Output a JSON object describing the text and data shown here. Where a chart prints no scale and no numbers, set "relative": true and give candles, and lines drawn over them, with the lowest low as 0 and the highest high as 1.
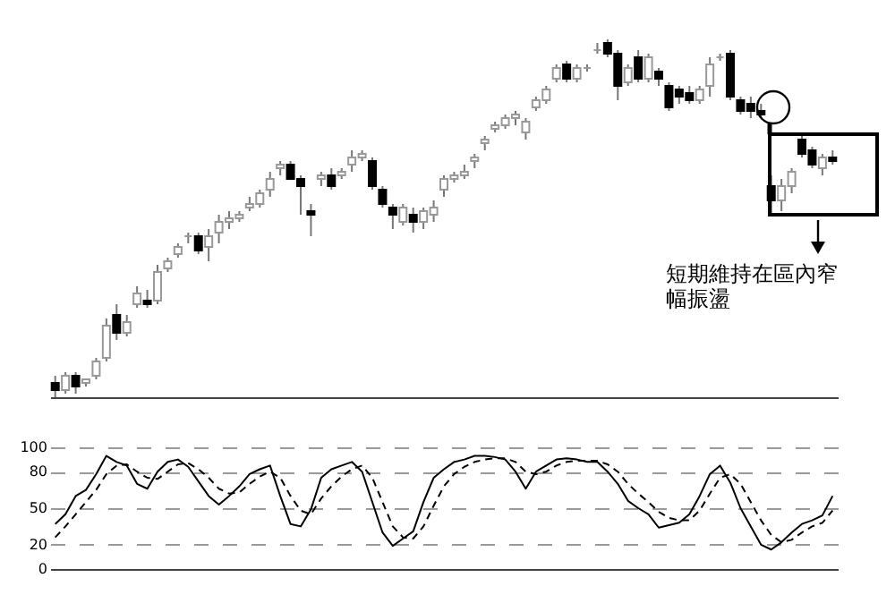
{
  "chart_data": [
    {
      "type": "candlestick",
      "relative": true,
      "tick_labels": false,
      "categories": [
        null,
        null,
        null,
        null,
        null,
        null,
        null,
        null,
        null,
        null,
        null,
        null,
        null,
        null,
        null,
        null,
        null,
        null,
        null,
        null,
        null,
        null,
        null,
        null,
        null,
        null,
        null,
        null,
        null,
        null,
        null,
        null,
        null,
        null,
        null,
        null,
        null,
        null,
        null,
        null,
        null,
        null,
        null,
        null,
        null,
        null,
        null,
        null,
        null,
        null,
        null,
        null,
        null,
        null,
        null,
        null,
        null,
        null,
        null,
        null,
        null,
        null,
        null,
        null,
        null,
        null,
        null,
        null,
        null,
        null,
        null,
        null,
        null,
        null,
        null,
        null,
        null
      ],
      "ohlc": [
        [
          0.04,
          0.06,
          0,
          0.02
        ],
        [
          0.02,
          0.07,
          0.01,
          0.06
        ],
        [
          0.06,
          0.07,
          0.01,
          0.03
        ],
        [
          0.04,
          0.05,
          0.03,
          0.05
        ],
        [
          0.06,
          0.11,
          0.05,
          0.1
        ],
        [
          0.11,
          0.22,
          0.1,
          0.2
        ],
        [
          0.23,
          0.26,
          0.16,
          0.18
        ],
        [
          0.18,
          0.23,
          0.17,
          0.21
        ],
        [
          0.26,
          0.31,
          0.25,
          0.29
        ],
        [
          0.27,
          0.3,
          0.25,
          0.26
        ],
        [
          0.27,
          0.37,
          0.26,
          0.35
        ],
        [
          0.36,
          0.39,
          0.35,
          0.38
        ],
        [
          0.4,
          0.43,
          0.39,
          0.42
        ],
        [
          0.45,
          0.46,
          0.43,
          0.45
        ],
        [
          0.45,
          0.46,
          0.4,
          0.41
        ],
        [
          0.42,
          0.47,
          0.38,
          0.45
        ],
        [
          0.46,
          0.51,
          0.43,
          0.49
        ],
        [
          0.49,
          0.52,
          0.47,
          0.5
        ],
        [
          0.5,
          0.52,
          0.49,
          0.51
        ],
        [
          0.53,
          0.56,
          0.52,
          0.54
        ],
        [
          0.54,
          0.58,
          0.53,
          0.57
        ],
        [
          0.58,
          0.63,
          0.56,
          0.61
        ],
        [
          0.64,
          0.66,
          0.62,
          0.65
        ],
        [
          0.65,
          0.66,
          0.61,
          0.61
        ],
        [
          0.61,
          0.62,
          0.51,
          0.59
        ],
        [
          0.52,
          0.54,
          0.45,
          0.51
        ],
        [
          0.61,
          0.63,
          0.59,
          0.62
        ],
        [
          0.62,
          0.64,
          0.58,
          0.59
        ],
        [
          0.62,
          0.64,
          0.61,
          0.63
        ],
        [
          0.65,
          0.69,
          0.63,
          0.67
        ],
        [
          0.67,
          0.69,
          0.66,
          0.68
        ],
        [
          0.66,
          0.67,
          0.58,
          0.59
        ],
        [
          0.58,
          0.59,
          0.53,
          0.54
        ],
        [
          0.53,
          0.54,
          0.47,
          0.51
        ],
        [
          0.49,
          0.54,
          0.48,
          0.53
        ],
        [
          0.51,
          0.53,
          0.46,
          0.49
        ],
        [
          0.49,
          0.53,
          0.47,
          0.52
        ],
        [
          0.51,
          0.55,
          0.49,
          0.53
        ],
        [
          0.58,
          0.62,
          0.56,
          0.61
        ],
        [
          0.61,
          0.63,
          0.6,
          0.62
        ],
        [
          0.62,
          0.65,
          0.61,
          0.63
        ],
        [
          0.66,
          0.68,
          0.64,
          0.67
        ],
        [
          0.71,
          0.73,
          0.69,
          0.72
        ],
        [
          0.75,
          0.77,
          0.74,
          0.76
        ],
        [
          0.76,
          0.79,
          0.75,
          0.78
        ],
        [
          0.78,
          0.8,
          0.76,
          0.79
        ],
        [
          0.74,
          0.78,
          0.72,
          0.77
        ],
        [
          0.81,
          0.84,
          0.8,
          0.83
        ],
        [
          0.83,
          0.87,
          0.82,
          0.86
        ],
        [
          0.89,
          0.93,
          0.88,
          0.92
        ],
        [
          0.93,
          0.94,
          0.88,
          0.89
        ],
        [
          0.89,
          0.93,
          0.88,
          0.92
        ],
        [
          0.92,
          0.93,
          0.91,
          0.92
        ],
        [
          0.97,
          0.99,
          0.96,
          0.97
        ],
        [
          0.99,
          1.0,
          0.95,
          0.96
        ],
        [
          0.96,
          0.97,
          0.83,
          0.87
        ],
        [
          0.88,
          0.93,
          0.87,
          0.92
        ],
        [
          0.95,
          0.97,
          0.88,
          0.89
        ],
        [
          0.89,
          0.96,
          0.88,
          0.95
        ],
        [
          0.91,
          0.92,
          0.87,
          0.89
        ],
        [
          0.87,
          0.88,
          0.8,
          0.81
        ],
        [
          0.86,
          0.87,
          0.82,
          0.84
        ],
        [
          0.85,
          0.87,
          0.82,
          0.83
        ],
        [
          0.83,
          0.87,
          0.82,
          0.86
        ],
        [
          0.87,
          0.95,
          0.84,
          0.93
        ],
        [
          0.95,
          0.96,
          0.94,
          0.95
        ],
        [
          0.96,
          0.97,
          0.83,
          0.84
        ],
        [
          0.83,
          0.84,
          0.79,
          0.8
        ],
        [
          0.82,
          0.84,
          0.78,
          0.8
        ],
        [
          0.8,
          0.82,
          0.78,
          0.79
        ],
        [
          0.59,
          0.62,
          0.51,
          0.55
        ],
        [
          0.55,
          0.61,
          0.52,
          0.59
        ],
        [
          0.59,
          0.64,
          0.57,
          0.63
        ],
        [
          0.72,
          0.73,
          0.67,
          0.68
        ],
        [
          0.69,
          0.7,
          0.64,
          0.65
        ],
        [
          0.64,
          0.68,
          0.62,
          0.67
        ],
        [
          0.67,
          0.69,
          0.65,
          0.66
        ]
      ],
      "annotations": [
        "短期維持在區內窄幅振盪"
      ]
    },
    {
      "type": "line",
      "tick_labels": "y",
      "grid": "y",
      "ylim": [
        0,
        100
      ],
      "yticks": [
        0,
        20,
        50,
        80,
        100
      ],
      "categories": [
        null,
        null,
        null,
        null,
        null,
        null,
        null,
        null,
        null,
        null,
        null,
        null,
        null,
        null,
        null,
        null,
        null,
        null,
        null,
        null,
        null,
        null,
        null,
        null,
        null,
        null,
        null,
        null,
        null,
        null,
        null,
        null,
        null,
        null,
        null,
        null,
        null,
        null,
        null,
        null,
        null,
        null,
        null,
        null,
        null,
        null,
        null,
        null,
        null,
        null,
        null,
        null,
        null,
        null,
        null,
        null,
        null,
        null,
        null,
        null,
        null,
        null,
        null,
        null,
        null,
        null,
        null,
        null,
        null,
        null,
        null,
        null,
        null,
        null,
        null,
        null,
        null
      ],
      "series": [
        {
          "color": "#000000",
          "line_style": "solid",
          "values": [
            37,
            45,
            60,
            65,
            78,
            93,
            88,
            85,
            70,
            66,
            80,
            88,
            90,
            84,
            72,
            60,
            53,
            60,
            68,
            78,
            82,
            85,
            60,
            37,
            35,
            49,
            75,
            82,
            85,
            88,
            80,
            55,
            30,
            19,
            25,
            31,
            55,
            75,
            82,
            88,
            90,
            93,
            93,
            92,
            90,
            80,
            66,
            80,
            85,
            90,
            91,
            90,
            88,
            88,
            80,
            70,
            56,
            50,
            45,
            34,
            36,
            38,
            45,
            60,
            78,
            85,
            71,
            50,
            35,
            20,
            16,
            22,
            30,
            37,
            40,
            44,
            60
          ]
        },
        {
          "color": "#000000",
          "line_style": "dashed",
          "values": [
            26,
            35,
            45,
            55,
            65,
            78,
            85,
            86,
            80,
            75,
            74,
            80,
            86,
            87,
            82,
            75,
            66,
            62,
            63,
            70,
            76,
            80,
            75,
            60,
            48,
            45,
            58,
            68,
            76,
            82,
            85,
            75,
            55,
            35,
            26,
            25,
            35,
            52,
            68,
            78,
            84,
            88,
            90,
            91,
            91,
            88,
            80,
            78,
            80,
            85,
            88,
            89,
            89,
            89,
            86,
            80,
            70,
            62,
            55,
            47,
            42,
            40,
            40,
            48,
            62,
            75,
            78,
            70,
            55,
            40,
            28,
            22,
            24,
            30,
            35,
            38,
            48
          ]
        }
      ]
    }
  ]
}
